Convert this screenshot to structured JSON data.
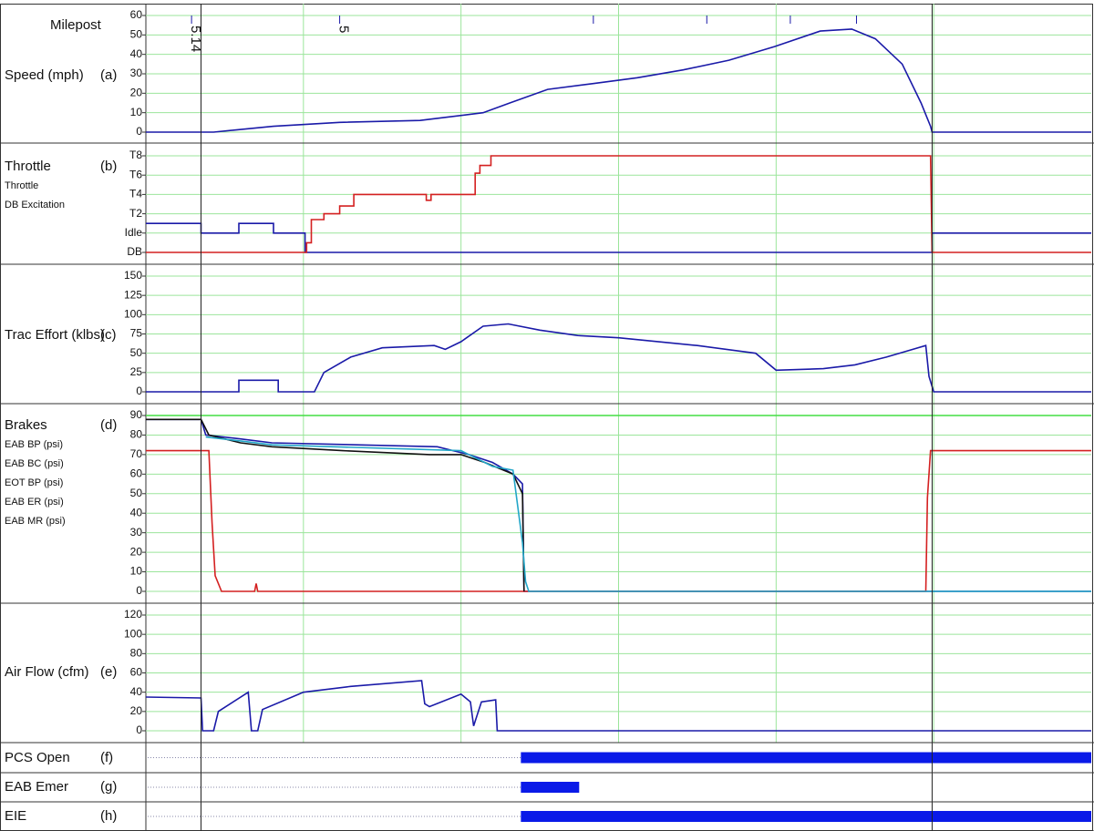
{
  "chart_data": [
    {
      "type": "line",
      "label": "Speed (mph)",
      "tag": "(a)",
      "xlim": [
        0,
        60
      ],
      "ylim": [
        0,
        60
      ],
      "yticks": [
        0,
        10,
        20,
        30,
        40,
        50,
        60
      ],
      "xgrid": [
        10,
        20,
        30,
        40,
        50
      ],
      "grid": true,
      "legend": false,
      "milepost": {
        "title": "Milepost",
        "x": [
          2.9,
          12.3,
          28.4,
          35.6,
          40.9,
          45.1
        ],
        "labels": [
          "5.14",
          "5",
          null,
          null,
          null,
          null
        ],
        "color": "#1a1aa8"
      },
      "cursors": [
        3.5,
        49.9
      ],
      "series": [
        {
          "color": "#1a1aa8",
          "x": [
            0,
            4.3,
            8.1,
            12.3,
            17.4,
            21.4,
            23.1,
            25.5,
            28.4,
            31.2,
            34.1,
            37,
            39.9,
            42.8,
            44.8,
            46.3,
            48,
            49.2,
            49.8,
            49.9,
            60
          ],
          "values": [
            0,
            0,
            3,
            5,
            6,
            10,
            15,
            22,
            25,
            28,
            32,
            37,
            44,
            52,
            53,
            48,
            35,
            15,
            3,
            0,
            0
          ]
        }
      ]
    },
    {
      "type": "line",
      "label": "Throttle",
      "tag": "(b)",
      "xlim": [
        0,
        60
      ],
      "ylim": [
        -2,
        8
      ],
      "yticks": [
        {
          "value": -2,
          "label": "DB"
        },
        {
          "value": 0,
          "label": "Idle"
        },
        {
          "value": 2,
          "label": "T2"
        },
        {
          "value": 4,
          "label": "T4"
        },
        {
          "value": 6,
          "label": "T6"
        },
        {
          "value": 8,
          "label": "T8"
        }
      ],
      "xgrid": [
        10,
        20,
        30,
        40,
        50
      ],
      "grid": true,
      "legend": true,
      "series": [
        {
          "name": "Throttle",
          "color": "#1a1aa8",
          "x": [
            0,
            3.5,
            3.5,
            5.9,
            5.9,
            8.1,
            8.1,
            10.1,
            10.1,
            49.9,
            49.9,
            60
          ],
          "values": [
            1,
            1,
            0,
            0,
            1,
            1,
            0,
            0,
            -2,
            -2,
            0,
            0
          ]
        },
        {
          "name": "DB Excitation",
          "color": "#d42020",
          "x": [
            0,
            10.2,
            10.2,
            10.5,
            10.5,
            11.3,
            11.3,
            12.3,
            12.3,
            13.2,
            13.2,
            17.8,
            17.8,
            18.1,
            18.1,
            20.9,
            20.9,
            21.2,
            21.2,
            21.9,
            21.9,
            49.8,
            49.9,
            60
          ],
          "values": [
            -2,
            -2,
            -1,
            -1,
            1.4,
            1.4,
            2,
            2,
            2.8,
            2.8,
            4,
            4,
            3.4,
            3.4,
            4,
            4,
            6.2,
            6.2,
            7,
            7,
            8,
            8,
            -2,
            -2
          ]
        }
      ]
    },
    {
      "type": "line",
      "label": "Trac Effort (klbs)",
      "tag": "(c)",
      "xlim": [
        0,
        60
      ],
      "ylim": [
        0,
        150
      ],
      "yticks": [
        0,
        25,
        50,
        75,
        100,
        125,
        150
      ],
      "xgrid": [
        10,
        20,
        30,
        40,
        50
      ],
      "grid": true,
      "legend": false,
      "series": [
        {
          "color": "#1a1aa8",
          "x": [
            0,
            5.9,
            5.9,
            8.4,
            8.4,
            10.7,
            11.3,
            13,
            15,
            18.3,
            19,
            20,
            21.4,
            23,
            25,
            27.4,
            30,
            35,
            38.7,
            40,
            43,
            45,
            47,
            49.5,
            49.7,
            50,
            60
          ],
          "values": [
            0,
            0,
            15,
            15,
            0,
            0,
            25,
            45,
            57,
            60,
            55,
            65,
            85,
            88,
            80,
            73,
            70,
            60,
            50,
            28,
            30,
            35,
            45,
            60,
            20,
            0,
            0
          ]
        }
      ]
    },
    {
      "type": "line",
      "label": "Brakes",
      "tag": "(d)",
      "xlim": [
        0,
        60
      ],
      "ylim": [
        0,
        90
      ],
      "yticks": [
        0,
        10,
        20,
        30,
        40,
        50,
        60,
        70,
        80,
        90
      ],
      "xgrid": [
        10,
        20,
        30,
        40,
        50
      ],
      "grid": true,
      "legend": true,
      "series": [
        {
          "name": "EAB BP (psi)",
          "color": "#1a1aa8",
          "x": [
            0,
            3.5,
            3.8,
            6,
            8,
            18.5,
            20.5,
            22,
            23.3,
            23.9,
            24,
            60
          ],
          "values": [
            88,
            88,
            80,
            78,
            76,
            74,
            70,
            66,
            60,
            55,
            0,
            0
          ]
        },
        {
          "name": "EAB BC (psi)",
          "color": "#d42020",
          "x": [
            0,
            4,
            4.2,
            4.4,
            4.8,
            6.9,
            7,
            7.1,
            49.5,
            49.6,
            49.8,
            60
          ],
          "values": [
            72,
            72,
            35,
            8,
            0,
            0,
            4,
            0,
            0,
            48,
            72,
            72
          ]
        },
        {
          "name": "EOT BP (psi)",
          "color": "#111111",
          "x": [
            0,
            3.5,
            4,
            6,
            8,
            12.5,
            18,
            20,
            21.5,
            23.3,
            23.9,
            24
          ],
          "values": [
            88,
            88,
            80,
            76,
            74,
            72,
            70,
            70,
            66,
            60,
            50,
            0
          ]
        },
        {
          "name": "EAB ER (psi)",
          "color": "#22a6c8",
          "x": [
            3.8,
            6,
            8,
            20,
            22,
            23.3,
            23.9,
            24.1,
            24.3,
            60
          ],
          "values": [
            79,
            77,
            75,
            72,
            64,
            62,
            25,
            5,
            0,
            0
          ]
        },
        {
          "name": "EAB MR (psi)",
          "color": "#44dd44",
          "x": [
            0,
            60
          ],
          "values": [
            90,
            90
          ]
        }
      ]
    },
    {
      "type": "line",
      "label": "Air Flow (cfm)",
      "tag": "(e)",
      "xlim": [
        0,
        60
      ],
      "ylim": [
        0,
        120
      ],
      "yticks": [
        0,
        20,
        40,
        60,
        80,
        100,
        120
      ],
      "xgrid": [
        10,
        20,
        30,
        40,
        50
      ],
      "grid": true,
      "legend": false,
      "series": [
        {
          "color": "#1a1aa8",
          "x": [
            0,
            3.5,
            3.6,
            4.3,
            4.6,
            6.5,
            6.7,
            7.1,
            7.4,
            10,
            13,
            17.5,
            17.7,
            18,
            20,
            20.6,
            20.8,
            21.3,
            22.2,
            22.3,
            60
          ],
          "values": [
            35,
            34,
            0,
            0,
            20,
            40,
            0,
            0,
            22,
            40,
            46,
            52,
            28,
            25,
            38,
            30,
            5,
            30,
            32,
            0,
            0
          ]
        }
      ]
    },
    {
      "type": "event",
      "label": "PCS Open",
      "tag": "(f)",
      "xlim": [
        0,
        60
      ],
      "color": "#0a1ae8",
      "spans": [
        [
          23.8,
          60
        ]
      ]
    },
    {
      "type": "event",
      "label": "EAB Emer",
      "tag": "(g)",
      "xlim": [
        0,
        60
      ],
      "color": "#0a1ae8",
      "spans": [
        [
          23.8,
          27.5
        ]
      ]
    },
    {
      "type": "event",
      "label": "EIE",
      "tag": "(h)",
      "xlim": [
        0,
        60
      ],
      "color": "#0a1ae8",
      "spans": [
        [
          23.8,
          60
        ]
      ]
    }
  ]
}
